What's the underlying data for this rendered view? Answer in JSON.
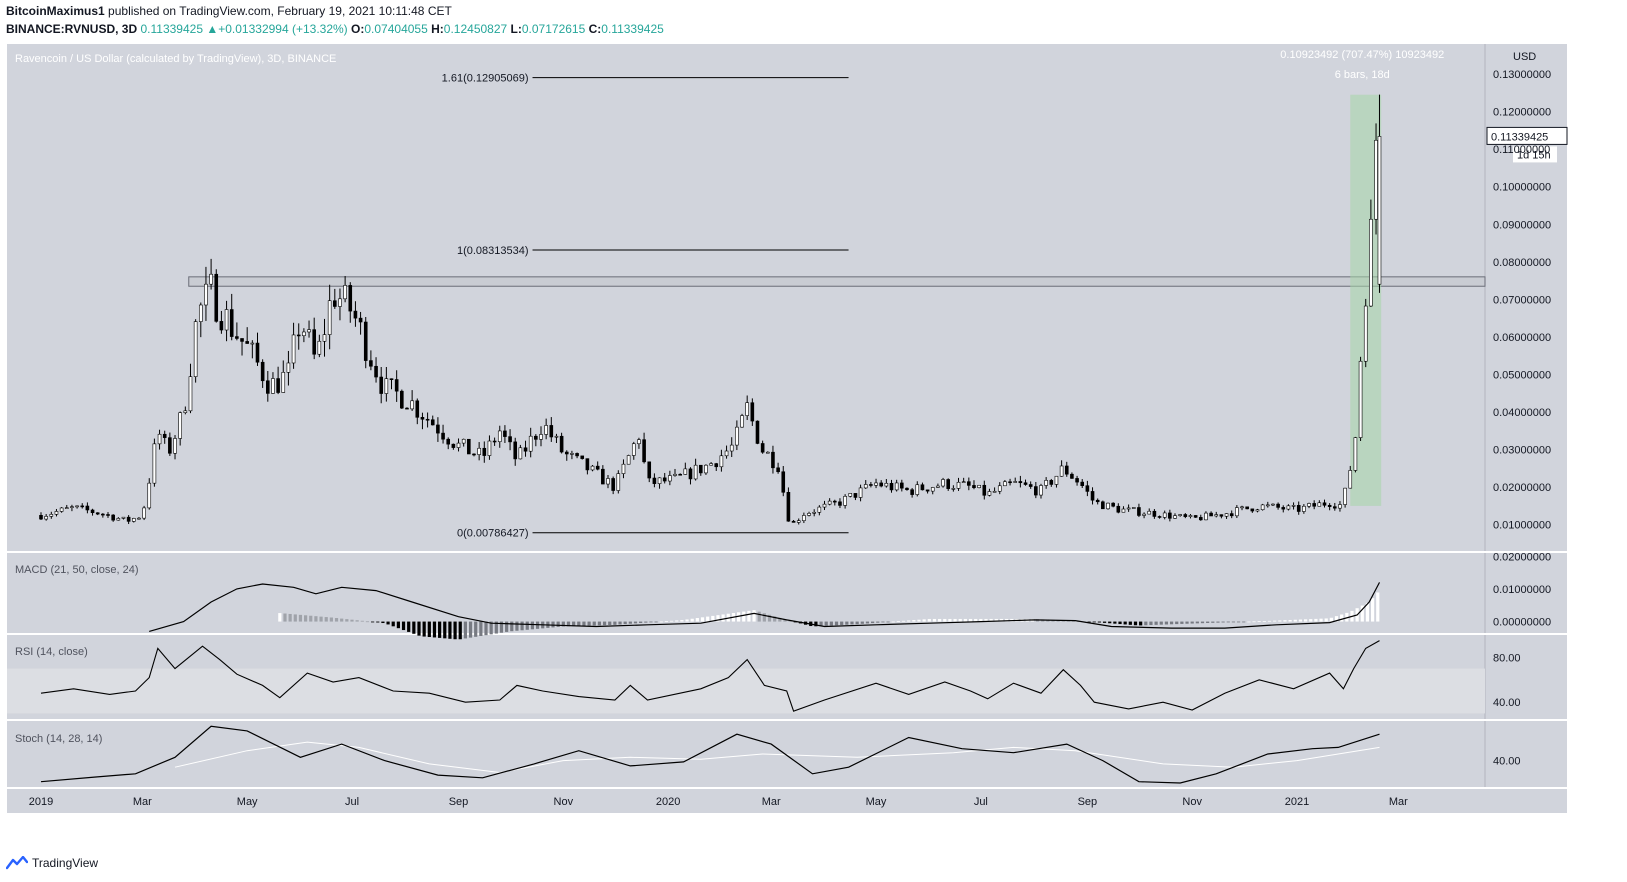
{
  "header": {
    "author": "BitcoinMaximus1",
    "published": "published on TradingView.com, February 19, 2021 10:11:48 CET",
    "symbol": "BINANCE:RVNUSD, 3D",
    "last": "0.11339425",
    "change_arrow": "▲",
    "change": "+0.01332994 (+13.32%)",
    "o_label": "O:",
    "o_value": "0.07404055",
    "h_label": "H:",
    "h_value": "0.12450827",
    "l_label": "L:",
    "l_value": "0.07172615",
    "c_label": "C:",
    "c_value": "0.11339425"
  },
  "footer": {
    "brand": "TradingView",
    "logo_icon": "tradingview-logo-icon"
  },
  "colors": {
    "pane_bg": "#d1d4dc",
    "rsi_band": "#dcdee3",
    "range_fill": "#a5d6a7",
    "candle_up": "#ffffff",
    "candle_down": "#000000"
  },
  "chart_data": [
    {
      "type": "candlestick",
      "title": "Ravencoin / US Dollar (calculated by TradingView), 3D, BINANCE",
      "currency": "USD",
      "x_labels": [
        "2019",
        "Mar",
        "May",
        "Jul",
        "Sep",
        "Nov",
        "2020",
        "Mar",
        "May",
        "Jul",
        "Sep",
        "Nov",
        "2021",
        "Mar"
      ],
      "y_ticks": [
        "0.13000000",
        "0.12000000",
        "0.11000000",
        "0.10000000",
        "0.09000000",
        "0.08000000",
        "0.07000000",
        "0.06000000",
        "0.05000000",
        "0.04000000",
        "0.03000000",
        "0.02000000",
        "0.01000000"
      ],
      "ylim": [
        0.003,
        0.138
      ],
      "price_label": "0.11339425",
      "countdown_label": "1d 15h",
      "price_path": [
        [
          "2019-01-01",
          0.0125
        ],
        [
          "2019-01-20",
          0.0145
        ],
        [
          "2019-02-05",
          0.013
        ],
        [
          "2019-02-20",
          0.011
        ],
        [
          "2019-03-01",
          0.0125
        ],
        [
          "2019-03-05",
          0.022
        ],
        [
          "2019-03-10",
          0.035
        ],
        [
          "2019-03-16",
          0.029
        ],
        [
          "2019-03-25",
          0.04
        ],
        [
          "2019-04-02",
          0.066
        ],
        [
          "2019-04-10",
          0.072
        ],
        [
          "2019-04-20",
          0.064
        ],
        [
          "2019-05-01",
          0.057
        ],
        [
          "2019-05-15",
          0.047
        ],
        [
          "2019-05-25",
          0.05
        ],
        [
          "2019-06-01",
          0.065
        ],
        [
          "2019-06-10",
          0.053
        ],
        [
          "2019-06-20",
          0.072
        ],
        [
          "2019-07-01",
          0.067
        ],
        [
          "2019-07-10",
          0.057
        ],
        [
          "2019-07-20",
          0.046
        ],
        [
          "2019-08-01",
          0.044
        ],
        [
          "2019-08-15",
          0.038
        ],
        [
          "2019-09-01",
          0.031
        ],
        [
          "2019-09-15",
          0.028
        ],
        [
          "2019-09-25",
          0.035
        ],
        [
          "2019-10-05",
          0.027
        ],
        [
          "2019-10-20",
          0.037
        ],
        [
          "2019-11-01",
          0.029
        ],
        [
          "2019-11-15",
          0.025
        ],
        [
          "2019-12-01",
          0.02
        ],
        [
          "2019-12-15",
          0.034
        ],
        [
          "2019-12-20",
          0.021
        ],
        [
          "2020-01-05",
          0.022
        ],
        [
          "2020-01-25",
          0.026
        ],
        [
          "2020-02-08",
          0.031
        ],
        [
          "2020-02-16",
          0.041
        ],
        [
          "2020-02-25",
          0.03
        ],
        [
          "2020-03-05",
          0.026
        ],
        [
          "2020-03-12",
          0.0095
        ],
        [
          "2020-03-20",
          0.013
        ],
        [
          "2020-04-10",
          0.016
        ],
        [
          "2020-05-01",
          0.021
        ],
        [
          "2020-05-20",
          0.019
        ],
        [
          "2020-06-10",
          0.021
        ],
        [
          "2020-06-25",
          0.02
        ],
        [
          "2020-07-05",
          0.018
        ],
        [
          "2020-07-20",
          0.021
        ],
        [
          "2020-08-05",
          0.019
        ],
        [
          "2020-08-18",
          0.025
        ],
        [
          "2020-08-28",
          0.021
        ],
        [
          "2020-09-05",
          0.016
        ],
        [
          "2020-09-20",
          0.014
        ],
        [
          "2020-10-10",
          0.013
        ],
        [
          "2020-11-01",
          0.0115
        ],
        [
          "2020-11-20",
          0.013
        ],
        [
          "2020-12-10",
          0.015
        ],
        [
          "2021-01-01",
          0.014
        ],
        [
          "2021-01-20",
          0.016
        ],
        [
          "2021-01-28",
          0.015
        ],
        [
          "2021-01-30",
          0.022
        ],
        [
          "2021-02-03",
          0.028
        ],
        [
          "2021-02-06",
          0.045
        ],
        [
          "2021-02-09",
          0.074
        ],
        [
          "2021-02-12",
          0.074
        ],
        [
          "2021-02-15",
          0.1134
        ]
      ],
      "last_candle": {
        "date": "2021-02-18",
        "open": 0.07404055,
        "high": 0.12450827,
        "low": 0.07172615,
        "close": 0.11339425
      },
      "resistance_zone": {
        "from_date": "2019-03-28",
        "low": 0.0735,
        "high": 0.076
      },
      "fib_levels": [
        {
          "label": "1.61(0.12905069)",
          "value": 0.12905069
        },
        {
          "label": "1(0.08313534)",
          "value": 0.08313534
        },
        {
          "label": "0(0.00786427)",
          "value": 0.00786427
        }
      ],
      "fib_span": {
        "from_date": "2019-09-01",
        "to_date": "2020-04-15"
      },
      "date_range": {
        "from_date": "2021-02-01",
        "to_date": "2021-02-19",
        "low": 0.015,
        "high": 0.1245,
        "label_change": "0.10923492 (707.47%) 10923492",
        "label_bars": "6 bars, 18d"
      }
    },
    {
      "type": "line+histogram",
      "title": "MACD (21, 50, close, 24)",
      "y_ticks": [
        "0.02000000",
        "0.01000000",
        "0.00000000"
      ],
      "ylim": [
        -0.0035,
        0.021
      ],
      "line_path": [
        [
          "2019-03-05",
          -0.003
        ],
        [
          "2019-03-25",
          0.0
        ],
        [
          "2019-04-10",
          0.006
        ],
        [
          "2019-04-25",
          0.01
        ],
        [
          "2019-05-10",
          0.0115
        ],
        [
          "2019-05-28",
          0.0105
        ],
        [
          "2019-06-10",
          0.0085
        ],
        [
          "2019-06-25",
          0.0105
        ],
        [
          "2019-07-15",
          0.0095
        ],
        [
          "2019-08-05",
          0.006
        ],
        [
          "2019-09-01",
          0.0015
        ],
        [
          "2019-09-20",
          -0.0005
        ],
        [
          "2019-10-20",
          -0.001
        ],
        [
          "2019-11-20",
          -0.0015
        ],
        [
          "2019-12-20",
          -0.001
        ],
        [
          "2020-01-20",
          -0.0005
        ],
        [
          "2020-02-20",
          0.0025
        ],
        [
          "2020-03-10",
          0.0005
        ],
        [
          "2020-04-01",
          -0.0015
        ],
        [
          "2020-05-01",
          -0.001
        ],
        [
          "2020-06-01",
          -0.0005
        ],
        [
          "2020-07-01",
          0.0
        ],
        [
          "2020-08-01",
          0.0005
        ],
        [
          "2020-08-25",
          0.0003
        ],
        [
          "2020-09-15",
          -0.0015
        ],
        [
          "2020-10-20",
          -0.002
        ],
        [
          "2020-11-20",
          -0.002
        ],
        [
          "2020-12-20",
          -0.001
        ],
        [
          "2021-01-20",
          -0.0003
        ],
        [
          "2021-02-05",
          0.002
        ],
        [
          "2021-02-12",
          0.006
        ],
        [
          "2021-02-18",
          0.012
        ]
      ],
      "hist_path": [
        [
          "2019-05-20",
          0.0026
        ],
        [
          "2019-06-20",
          0.0012
        ],
        [
          "2019-07-20",
          -0.0005
        ],
        [
          "2019-08-10",
          -0.0045
        ],
        [
          "2019-09-01",
          -0.0055
        ],
        [
          "2019-10-01",
          -0.003
        ],
        [
          "2019-11-01",
          -0.0015
        ],
        [
          "2019-12-01",
          -0.001
        ],
        [
          "2020-01-10",
          0.0005
        ],
        [
          "2020-02-20",
          0.0035
        ],
        [
          "2020-03-10",
          0.0005
        ],
        [
          "2020-03-25",
          -0.0015
        ],
        [
          "2020-04-20",
          -0.0008
        ],
        [
          "2020-06-01",
          0.0008
        ],
        [
          "2020-08-01",
          0.0008
        ],
        [
          "2020-09-01",
          0.0
        ],
        [
          "2020-10-01",
          -0.0012
        ],
        [
          "2020-11-01",
          -0.0006
        ],
        [
          "2020-12-15",
          0.0002
        ],
        [
          "2021-01-20",
          0.001
        ],
        [
          "2021-02-01",
          0.003
        ],
        [
          "2021-02-12",
          0.006
        ],
        [
          "2021-02-18",
          0.0095
        ]
      ]
    },
    {
      "type": "line",
      "title": "RSI (14, close)",
      "y_ticks": [
        "80.00",
        "40.00"
      ],
      "ylim": [
        25,
        100
      ],
      "band": [
        30,
        70
      ],
      "line_path": [
        [
          "2019-01-01",
          48
        ],
        [
          "2019-01-20",
          52
        ],
        [
          "2019-02-10",
          47
        ],
        [
          "2019-02-25",
          50
        ],
        [
          "2019-03-05",
          62
        ],
        [
          "2019-03-10",
          88
        ],
        [
          "2019-03-20",
          70
        ],
        [
          "2019-04-05",
          90
        ],
        [
          "2019-04-15",
          78
        ],
        [
          "2019-04-25",
          65
        ],
        [
          "2019-05-10",
          55
        ],
        [
          "2019-05-20",
          44
        ],
        [
          "2019-06-05",
          66
        ],
        [
          "2019-06-20",
          58
        ],
        [
          "2019-07-05",
          62
        ],
        [
          "2019-07-25",
          50
        ],
        [
          "2019-08-15",
          48
        ],
        [
          "2019-09-05",
          40
        ],
        [
          "2019-09-25",
          42
        ],
        [
          "2019-10-05",
          55
        ],
        [
          "2019-10-20",
          50
        ],
        [
          "2019-11-10",
          45
        ],
        [
          "2019-12-01",
          42
        ],
        [
          "2019-12-10",
          55
        ],
        [
          "2019-12-20",
          42
        ],
        [
          "2020-01-20",
          52
        ],
        [
          "2020-02-05",
          62
        ],
        [
          "2020-02-16",
          78
        ],
        [
          "2020-02-26",
          55
        ],
        [
          "2020-03-10",
          50
        ],
        [
          "2020-03-14",
          32
        ],
        [
          "2020-04-01",
          42
        ],
        [
          "2020-05-01",
          57
        ],
        [
          "2020-05-20",
          47
        ],
        [
          "2020-06-10",
          58
        ],
        [
          "2020-06-25",
          50
        ],
        [
          "2020-07-05",
          43
        ],
        [
          "2020-07-20",
          57
        ],
        [
          "2020-08-05",
          48
        ],
        [
          "2020-08-18",
          69
        ],
        [
          "2020-08-28",
          55
        ],
        [
          "2020-09-05",
          40
        ],
        [
          "2020-09-25",
          34
        ],
        [
          "2020-10-15",
          40
        ],
        [
          "2020-11-01",
          33
        ],
        [
          "2020-11-20",
          48
        ],
        [
          "2020-12-10",
          60
        ],
        [
          "2020-12-30",
          52
        ],
        [
          "2021-01-20",
          66
        ],
        [
          "2021-01-28",
          52
        ],
        [
          "2021-02-03",
          70
        ],
        [
          "2021-02-10",
          88
        ],
        [
          "2021-02-18",
          95
        ]
      ]
    },
    {
      "type": "line",
      "title": "Stoch (14, 28, 14)",
      "y_ticks": [
        "40.00"
      ],
      "ylim": [
        0,
        100
      ],
      "k_path": [
        [
          "2019-01-01",
          8
        ],
        [
          "2019-02-01",
          15
        ],
        [
          "2019-02-25",
          20
        ],
        [
          "2019-03-20",
          45
        ],
        [
          "2019-04-10",
          92
        ],
        [
          "2019-05-01",
          85
        ],
        [
          "2019-06-01",
          45
        ],
        [
          "2019-06-25",
          65
        ],
        [
          "2019-07-20",
          40
        ],
        [
          "2019-08-20",
          18
        ],
        [
          "2019-09-15",
          14
        ],
        [
          "2019-10-15",
          35
        ],
        [
          "2019-11-10",
          55
        ],
        [
          "2019-12-10",
          32
        ],
        [
          "2020-01-10",
          38
        ],
        [
          "2020-02-10",
          80
        ],
        [
          "2020-03-01",
          65
        ],
        [
          "2020-03-25",
          20
        ],
        [
          "2020-04-15",
          30
        ],
        [
          "2020-05-20",
          75
        ],
        [
          "2020-06-20",
          58
        ],
        [
          "2020-07-20",
          52
        ],
        [
          "2020-08-20",
          65
        ],
        [
          "2020-09-10",
          40
        ],
        [
          "2020-10-01",
          8
        ],
        [
          "2020-10-25",
          6
        ],
        [
          "2020-11-15",
          20
        ],
        [
          "2020-12-15",
          50
        ],
        [
          "2021-01-10",
          58
        ],
        [
          "2021-01-25",
          60
        ],
        [
          "2021-02-18",
          80
        ]
      ],
      "d_path": [
        [
          "2019-03-20",
          30
        ],
        [
          "2019-05-01",
          55
        ],
        [
          "2019-06-05",
          68
        ],
        [
          "2019-07-05",
          60
        ],
        [
          "2019-08-15",
          35
        ],
        [
          "2019-09-25",
          22
        ],
        [
          "2019-11-01",
          40
        ],
        [
          "2019-12-10",
          45
        ],
        [
          "2020-01-20",
          42
        ],
        [
          "2020-02-25",
          50
        ],
        [
          "2020-04-20",
          45
        ],
        [
          "2020-06-15",
          52
        ],
        [
          "2020-07-20",
          60
        ],
        [
          "2020-08-25",
          55
        ],
        [
          "2020-10-15",
          35
        ],
        [
          "2020-11-25",
          30
        ],
        [
          "2021-01-01",
          40
        ],
        [
          "2021-02-18",
          60
        ]
      ]
    }
  ]
}
